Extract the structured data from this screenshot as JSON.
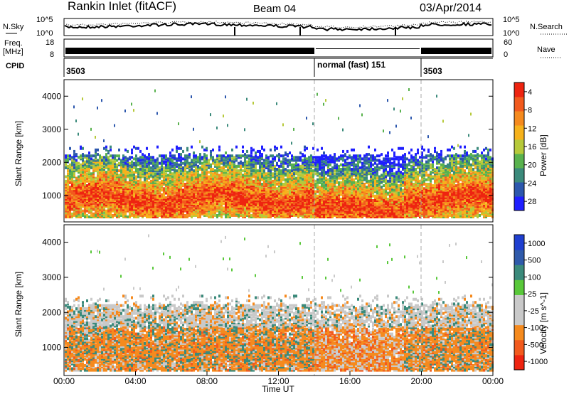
{
  "header": {
    "station": "Rankin Inlet (fitACF)",
    "beam": "Beam 04",
    "date": "03/Apr/2014"
  },
  "strip_labels": {
    "nsky": "N.Sky",
    "nsky_ticks": [
      "10^5",
      "10^0"
    ],
    "nsearch": "N.Search",
    "nsearch_ticks": [
      "10^5",
      "10^0"
    ],
    "freq": "Freq.",
    "freq_unit": "[MHz]",
    "freq_ticks": [
      "18",
      "8"
    ],
    "nave": "Nave",
    "nave_ticks": [
      "60",
      "0"
    ],
    "cpid": "CPID"
  },
  "cpid_segments": [
    {
      "label": "3503",
      "start_hour": 0,
      "end_hour": 14
    },
    {
      "label": "normal (fast) 151",
      "start_hour": 14,
      "end_hour": 20
    },
    {
      "label": "3503",
      "start_hour": 20,
      "end_hour": 24
    }
  ],
  "colors": {
    "power": [
      "#1f1fff",
      "#2c57ad",
      "#3b8a7b",
      "#59b24e",
      "#b6c93a",
      "#f6b21c",
      "#f58a1e",
      "#f25a1d",
      "#ee2410"
    ],
    "velocity": [
      "#ee2410",
      "#f25a1d",
      "#f58a1e",
      "#c9c9c9",
      "#c9c9c9",
      "#59c83a",
      "#3b8a7b",
      "#2f5aaa",
      "#1f3fd0"
    ]
  },
  "chart_data": [
    {
      "type": "heatmap",
      "name": "power",
      "ylabel": "Slant Range [km]",
      "yticks": [
        "1000",
        "2000",
        "3000",
        "4000"
      ],
      "ylim": [
        200,
        4500
      ],
      "xlim_hours": [
        0,
        24
      ],
      "colorbar_label": "Power [dB]",
      "colorbar_ticks": [
        "4",
        "8",
        "12",
        "16",
        "20",
        "24",
        "28"
      ],
      "colorbar_range": [
        0,
        30
      ]
    },
    {
      "type": "heatmap",
      "name": "velocity",
      "ylabel": "Slant Range [km]",
      "yticks": [
        "1000",
        "2000",
        "3000",
        "4000"
      ],
      "ylim": [
        200,
        4500
      ],
      "xlim_hours": [
        0,
        24
      ],
      "colorbar_label": "Velocity [m s^-1]",
      "colorbar_ticks": [
        "1000",
        "500",
        "100",
        "25",
        "-25",
        "-100",
        "-500",
        "-1000"
      ]
    }
  ],
  "xaxis": {
    "ticks": [
      "00:00",
      "04:00",
      "08:00",
      "12:00",
      "16:00",
      "20:00",
      "00:00"
    ],
    "label": "Time UT"
  }
}
